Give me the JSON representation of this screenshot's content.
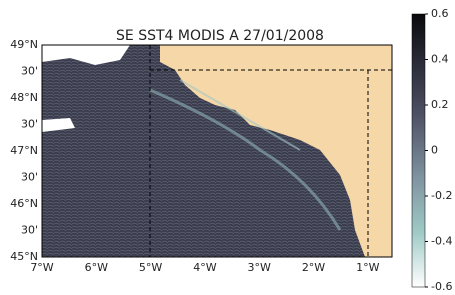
{
  "title": "SE SST4 MODIS A 27/01/2008",
  "lat_labels": [
    "49°N",
    "30'",
    "48°N",
    "30'",
    "47°N",
    "30'",
    "46°N",
    "30'",
    "45°N"
  ],
  "lon_labels": [
    "7°W",
    "6°W",
    "5°W",
    "4°W",
    "3°W",
    "2°W",
    "1°W"
  ],
  "colorbar": {
    "ticks": [
      0.6,
      0.4,
      0.2,
      0,
      -0.2,
      -0.4,
      -0.6
    ]
  }
}
